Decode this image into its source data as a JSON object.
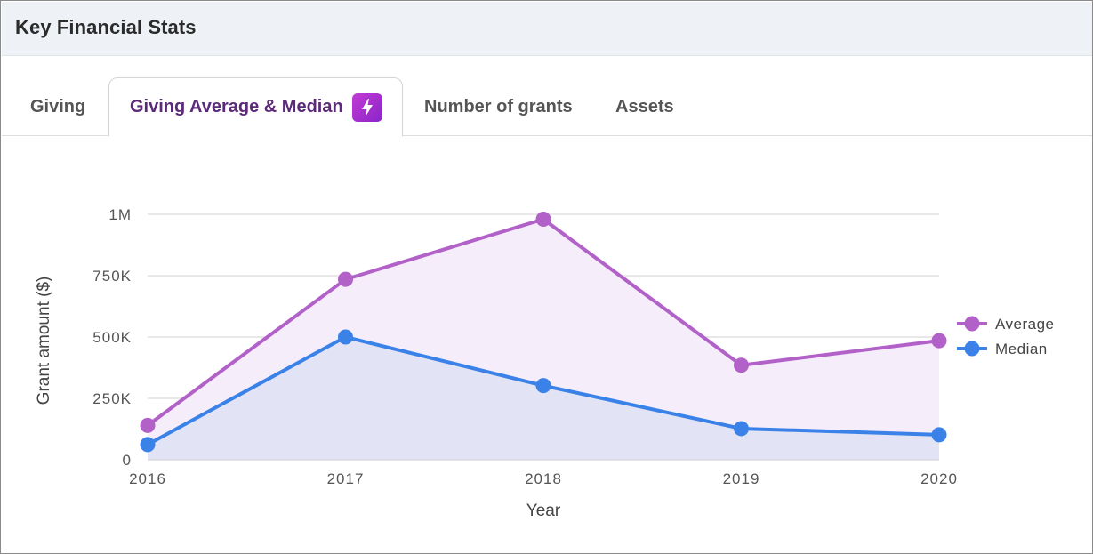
{
  "header": {
    "title": "Key Financial Stats"
  },
  "tabs": [
    {
      "label": "Giving",
      "active": false
    },
    {
      "label": "Giving Average & Median",
      "active": true,
      "badge_icon": "lightning-bolt-icon"
    },
    {
      "label": "Number of grants",
      "active": false
    },
    {
      "label": "Assets",
      "active": false
    }
  ],
  "colors": {
    "average": "#b261c9",
    "median": "#3b82e8",
    "average_fill": "#f5eefa",
    "median_fill": "#e2e4f6",
    "grid": "#d0d0d0",
    "active_tab": "#5c2a78"
  },
  "chart_data": {
    "type": "line",
    "title": "",
    "xlabel": "Year",
    "ylabel": "Grant amount ($)",
    "categories": [
      "2016",
      "2017",
      "2018",
      "2019",
      "2020"
    ],
    "ylim": [
      0,
      1000000
    ],
    "yticks": [
      0,
      250000,
      500000,
      750000,
      1000000
    ],
    "ytick_labels": [
      "0",
      "250K",
      "500K",
      "750K",
      "1M"
    ],
    "legend_position": "right",
    "series": [
      {
        "name": "Average",
        "values": [
          140000,
          735000,
          980000,
          385000,
          485000
        ]
      },
      {
        "name": "Median",
        "values": [
          62000,
          500000,
          302000,
          127000,
          102000
        ]
      }
    ]
  }
}
